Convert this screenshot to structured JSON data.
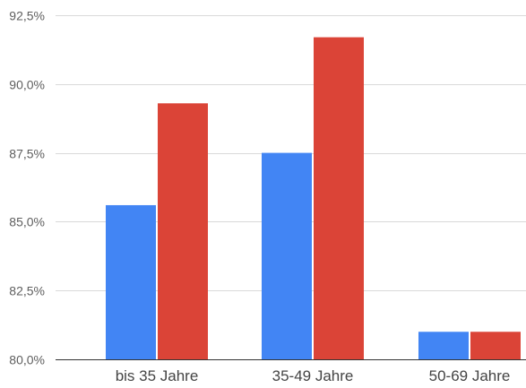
{
  "chart_data": {
    "type": "bar",
    "title": "",
    "xlabel": "",
    "ylabel": "",
    "categories": [
      "bis 35 Jahre",
      "35-49 Jahre",
      "50-69 Jahre"
    ],
    "series": [
      {
        "color": "#4285f4",
        "values": [
          85.6,
          87.5,
          81.0
        ]
      },
      {
        "color": "#db4437",
        "values": [
          89.3,
          91.7,
          81.0
        ]
      }
    ],
    "ylim": [
      80.0,
      92.5
    ],
    "yticks": [
      80.0,
      82.5,
      85.0,
      87.5,
      90.0,
      92.5
    ],
    "ytick_labels": [
      "80,0%",
      "82,5%",
      "85,0%",
      "87,5%",
      "90,0%",
      "92,5%"
    ],
    "grid": true,
    "legend": "none"
  }
}
